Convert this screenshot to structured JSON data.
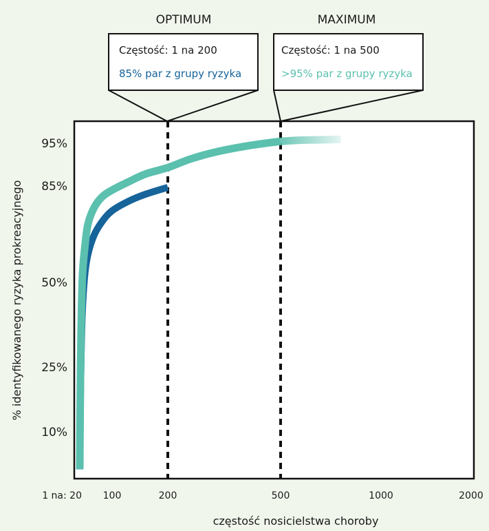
{
  "colors": {
    "background": "#f1f6ec",
    "teal": "#5bc0ae",
    "blue": "#16649a",
    "frame": "#111111"
  },
  "chart_data": {
    "type": "line",
    "xlabel": "częstość nosicielstwa choroby",
    "ylabel": "% identyfikowanego ryzyka prokreacyjnego",
    "x_tick_labels": [
      "1 na: 20",
      "100",
      "200",
      "500",
      "1000",
      "2000"
    ],
    "y_tick_labels": [
      "95%",
      "85%",
      "50%",
      "25%",
      "10%"
    ],
    "y_tick_values": [
      95,
      85,
      50,
      25,
      10
    ],
    "series": [
      {
        "color": "#5bc0ae",
        "x": [
          20,
          22,
          26,
          32,
          40,
          55,
          75,
          100,
          130,
          160,
          200,
          260,
          330,
          420,
          500,
          600,
          700,
          800
        ],
        "y": [
          2,
          25,
          50,
          62,
          71,
          77,
          81,
          83.5,
          86,
          87.8,
          89.3,
          91.3,
          93,
          94.5,
          95.5,
          95.8,
          95.9,
          96
        ]
      },
      {
        "color": "#16649a",
        "x": [
          20,
          22,
          26,
          32,
          40,
          55,
          75,
          100,
          130,
          160,
          200
        ],
        "y": [
          2,
          20,
          40,
          52,
          60,
          67,
          72,
          76,
          79.5,
          82,
          84.5
        ]
      }
    ],
    "reference_lines": [
      {
        "x": 200,
        "label": "OPTIMUM"
      },
      {
        "x": 500,
        "label": "MAXIMUM"
      }
    ],
    "annotations": [
      {
        "title": "OPTIMUM",
        "line1": "Częstość: 1 na 200",
        "line2": "85% par z grupy ryzyka",
        "line2_color": "#16649a"
      },
      {
        "title": "MAXIMUM",
        "line1": "Częstość: 1 na 500",
        "line2": ">95% par z grupy ryzyka",
        "line2_color": "#5bc0ae"
      }
    ]
  }
}
